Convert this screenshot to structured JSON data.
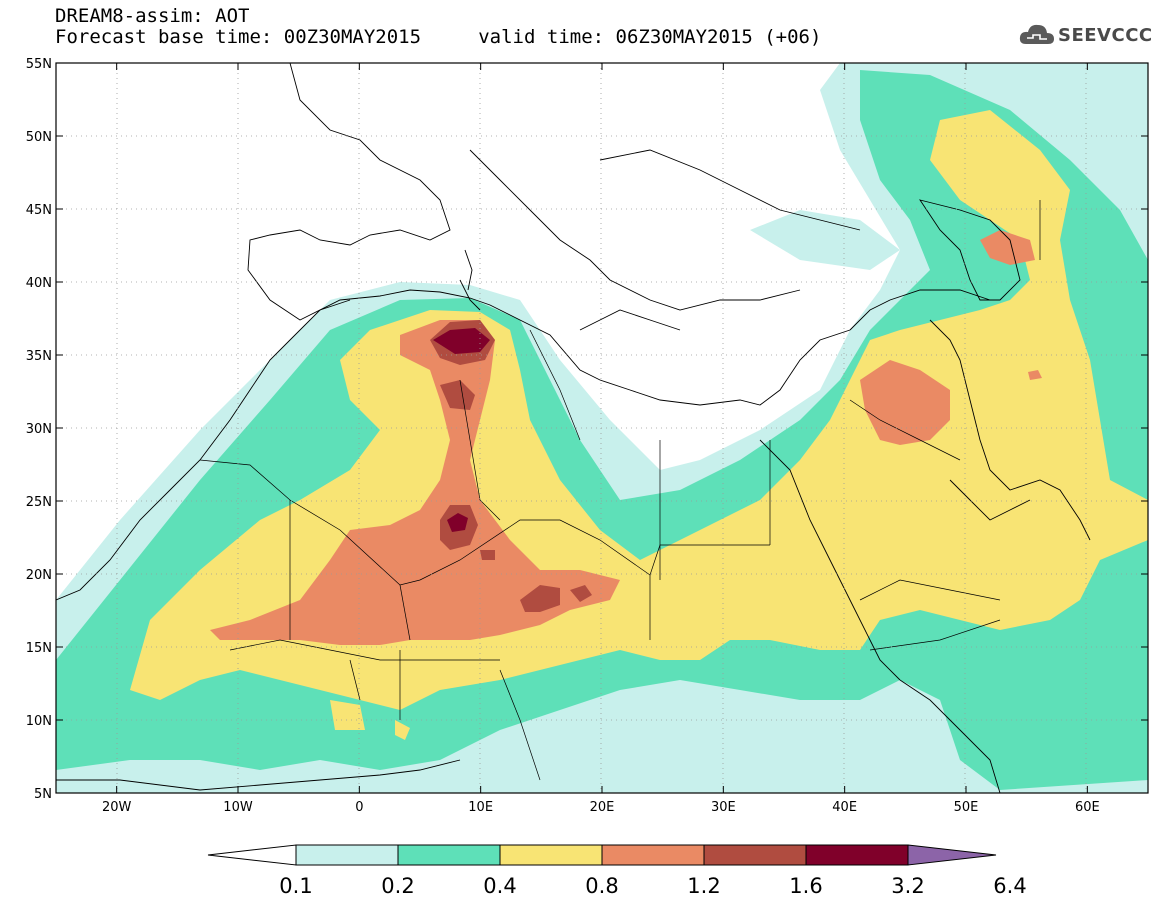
{
  "header": {
    "title_line1": "DREAM8-assim: AOT",
    "title_line2": "Forecast base time: 00Z30MAY2015     valid time: 06Z30MAY2015 (+06)",
    "logo_text": "SEEVCCC"
  },
  "map": {
    "lon_range": [
      -25,
      65
    ],
    "lat_range": [
      5,
      55
    ],
    "lat_ticks": [
      {
        "value": 55,
        "label": "55N"
      },
      {
        "value": 50,
        "label": "50N"
      },
      {
        "value": 45,
        "label": "45N"
      },
      {
        "value": 40,
        "label": "40N"
      },
      {
        "value": 35,
        "label": "35N"
      },
      {
        "value": 30,
        "label": "30N"
      },
      {
        "value": 25,
        "label": "25N"
      },
      {
        "value": 20,
        "label": "20N"
      },
      {
        "value": 15,
        "label": "15N"
      },
      {
        "value": 10,
        "label": "10N"
      },
      {
        "value": 5,
        "label": "5N"
      }
    ],
    "lon_ticks": [
      {
        "value": -20,
        "label": "20W"
      },
      {
        "value": -10,
        "label": "10W"
      },
      {
        "value": 0,
        "label": "0"
      },
      {
        "value": 10,
        "label": "10E"
      },
      {
        "value": 20,
        "label": "20E"
      },
      {
        "value": 30,
        "label": "30E"
      },
      {
        "value": 40,
        "label": "40E"
      },
      {
        "value": 50,
        "label": "50E"
      },
      {
        "value": 60,
        "label": "60E"
      }
    ]
  },
  "colorbar": {
    "colors": [
      "#c8f0ec",
      "#5ee0b8",
      "#f8e474",
      "#ea8a64",
      "#b04c40",
      "#80002a",
      "#3e2410",
      "#8c64a8"
    ],
    "labels": [
      "0.1",
      "0.2",
      "0.4",
      "0.8",
      "1.2",
      "1.6",
      "3.2",
      "6.4"
    ]
  }
}
